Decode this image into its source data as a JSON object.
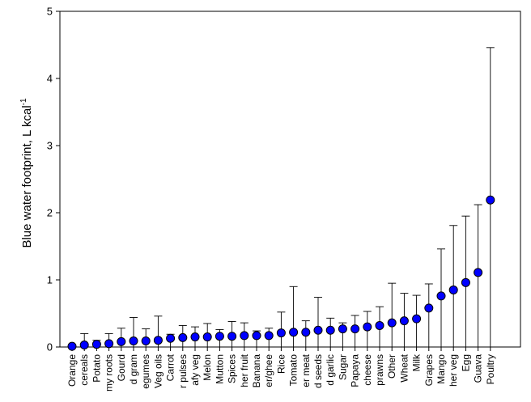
{
  "chart_data": {
    "type": "scatter",
    "ylabel": "Blue water footprint, L kcal",
    "ylabel_sup": "-1",
    "ylim": [
      0,
      5
    ],
    "yticks": [
      "0",
      "1",
      "2",
      "3",
      "4",
      "5"
    ],
    "error_bars": "upper",
    "marker_color": "#0000ff",
    "categories": [
      "Orange",
      "cereals",
      "Potato",
      "my roots",
      "Gourd",
      "d gram",
      "egumes",
      "Veg oils",
      "Carrot",
      "r pulses",
      "afy veg",
      "Melon",
      "Mutton",
      "Spices",
      "her fruit",
      "Banana",
      "er/ghee",
      "Rice",
      "Tomato",
      "er meat",
      "d seeds",
      "d garlic",
      "Sugar",
      "Papaya",
      "cheese",
      "prawns",
      "Other",
      "Wheat",
      "Milk",
      "Grapes",
      "Mango",
      "her veg",
      "Egg",
      "Guava",
      "Poultry"
    ],
    "values": [
      0.01,
      0.03,
      0.04,
      0.05,
      0.08,
      0.09,
      0.09,
      0.1,
      0.13,
      0.14,
      0.15,
      0.15,
      0.16,
      0.16,
      0.17,
      0.17,
      0.17,
      0.21,
      0.22,
      0.22,
      0.25,
      0.25,
      0.27,
      0.27,
      0.3,
      0.32,
      0.36,
      0.39,
      0.42,
      0.58,
      0.76,
      0.85,
      0.96,
      1.11,
      2.19
    ],
    "upper": [
      0.02,
      0.2,
      0.1,
      0.2,
      0.28,
      0.44,
      0.27,
      0.46,
      0.19,
      0.32,
      0.3,
      0.35,
      0.26,
      0.38,
      0.36,
      0.24,
      0.28,
      0.52,
      0.9,
      0.39,
      0.74,
      0.43,
      0.36,
      0.47,
      0.53,
      0.6,
      0.95,
      0.8,
      0.77,
      0.94,
      1.46,
      1.81,
      1.95,
      2.12,
      4.46
    ]
  }
}
